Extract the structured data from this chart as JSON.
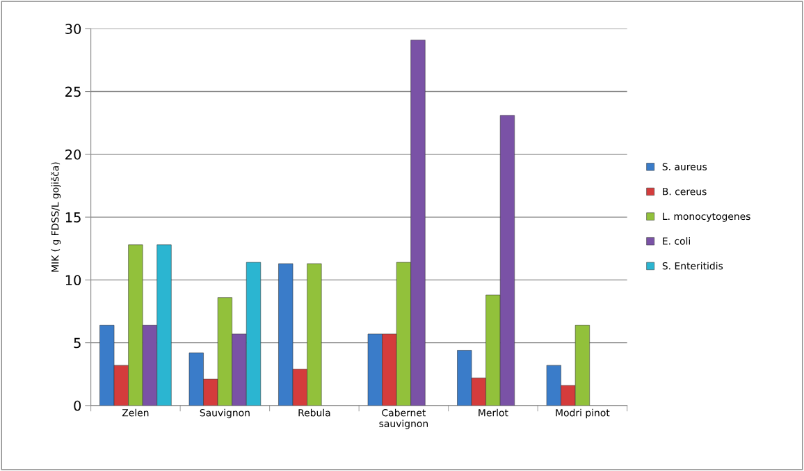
{
  "chart_data": {
    "type": "bar",
    "ylabel": "MIK ( g FDSS/L gojišča)",
    "categories": [
      "Zelen",
      "Sauvignon",
      "Rebula",
      "Cabernet\nsauvignon",
      "Merlot",
      "Modri pinot"
    ],
    "series": [
      {
        "name": "S. aureus",
        "color": "#3a7cc9",
        "values": [
          6.4,
          4.2,
          11.3,
          5.7,
          4.4,
          3.2
        ]
      },
      {
        "name": "B. cereus",
        "color": "#d43c3c",
        "values": [
          3.2,
          2.1,
          2.9,
          5.7,
          2.2,
          1.6
        ]
      },
      {
        "name": "L. monocytogenes",
        "color": "#92c13b",
        "values": [
          12.8,
          8.6,
          11.3,
          11.4,
          8.8,
          6.4
        ]
      },
      {
        "name": "E. coli",
        "color": "#7a52a6",
        "values": [
          6.4,
          5.7,
          null,
          29.1,
          23.1,
          null
        ]
      },
      {
        "name": "S. Enteritidis",
        "color": "#2bb5d1",
        "values": [
          12.8,
          11.4,
          null,
          null,
          null,
          null
        ]
      }
    ],
    "ylim": [
      0,
      30
    ],
    "yticks": [
      0,
      5,
      10,
      15,
      20,
      25,
      30
    ],
    "grid": "y",
    "legend": "right"
  }
}
